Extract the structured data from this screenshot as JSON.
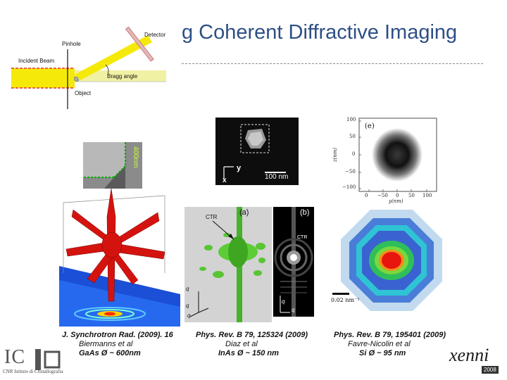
{
  "slide": {
    "title": "g Coherent Diffractive Imaging"
  },
  "diagram": {
    "detector": "Detector",
    "pinhole": "Pinhole",
    "incident_beam": "Incident Beam",
    "bragg_angle": "Bragg angle",
    "object": "Object"
  },
  "panels": {
    "left_sem_scale": "400nm",
    "mid_sem_axis_y": "y",
    "mid_sem_axis_x": "x",
    "mid_sem_scale": "100 nm",
    "mid_iso_label_a": "(a)",
    "mid_iso_label_ctr": "CTR",
    "mid_iso_axis_qx": "q",
    "mid_iso_axis_qy": "q",
    "mid_iso_axis_qz": "q",
    "mid_diff_label_b": "(b)",
    "mid_diff_label_ctr": "CTR",
    "mid_diff_axis_qy": "q",
    "mid_diff_axis_qx": "q",
    "right_plot_label": "(e)",
    "right_plot_xlabel": "y(nm)",
    "right_plot_ylabel": "z(nm)",
    "right_plot_yticks": [
      "100",
      "50",
      "0",
      "−50",
      "−100"
    ],
    "right_plot_xticks": [
      "0",
      "−50",
      "0",
      "50",
      "100"
    ],
    "right_diff_scale": "0.02 nm⁻¹"
  },
  "citations": [
    {
      "ref": "J. Synchrotron Rad. (2009). 16",
      "authors": "Biermanns et al",
      "material": "GaAs  Ø ~ 600nm"
    },
    {
      "ref": "Phys. Rev. B 79, 125324 (2009)",
      "authors": "Diaz et al",
      "material": "InAs   Ø ~ 150 nm"
    },
    {
      "ref": "Phys. Rev. B 79, 195401 (2009)",
      "authors": "Favre-Nicolin et al",
      "material": "Si   Ø ~ 95 nm"
    }
  ],
  "footer": {
    "logo_left": "IC",
    "logo_left_sub": "CNR Istituto di Cristallografia",
    "logo_right": "xenni",
    "logo_right_sub": "2008"
  }
}
